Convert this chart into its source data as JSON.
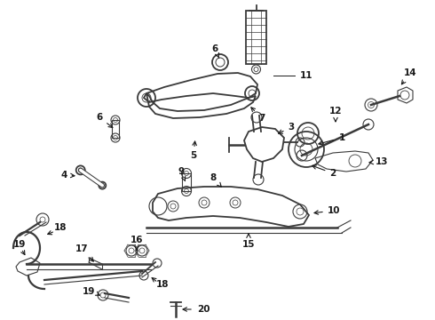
{
  "bg_color": "#ffffff",
  "line_color": "#3a3a3a",
  "label_color": "#1a1a1a",
  "figsize": [
    4.9,
    3.6
  ],
  "dpi": 100,
  "xlim": [
    0,
    490
  ],
  "ylim": [
    0,
    360
  ]
}
